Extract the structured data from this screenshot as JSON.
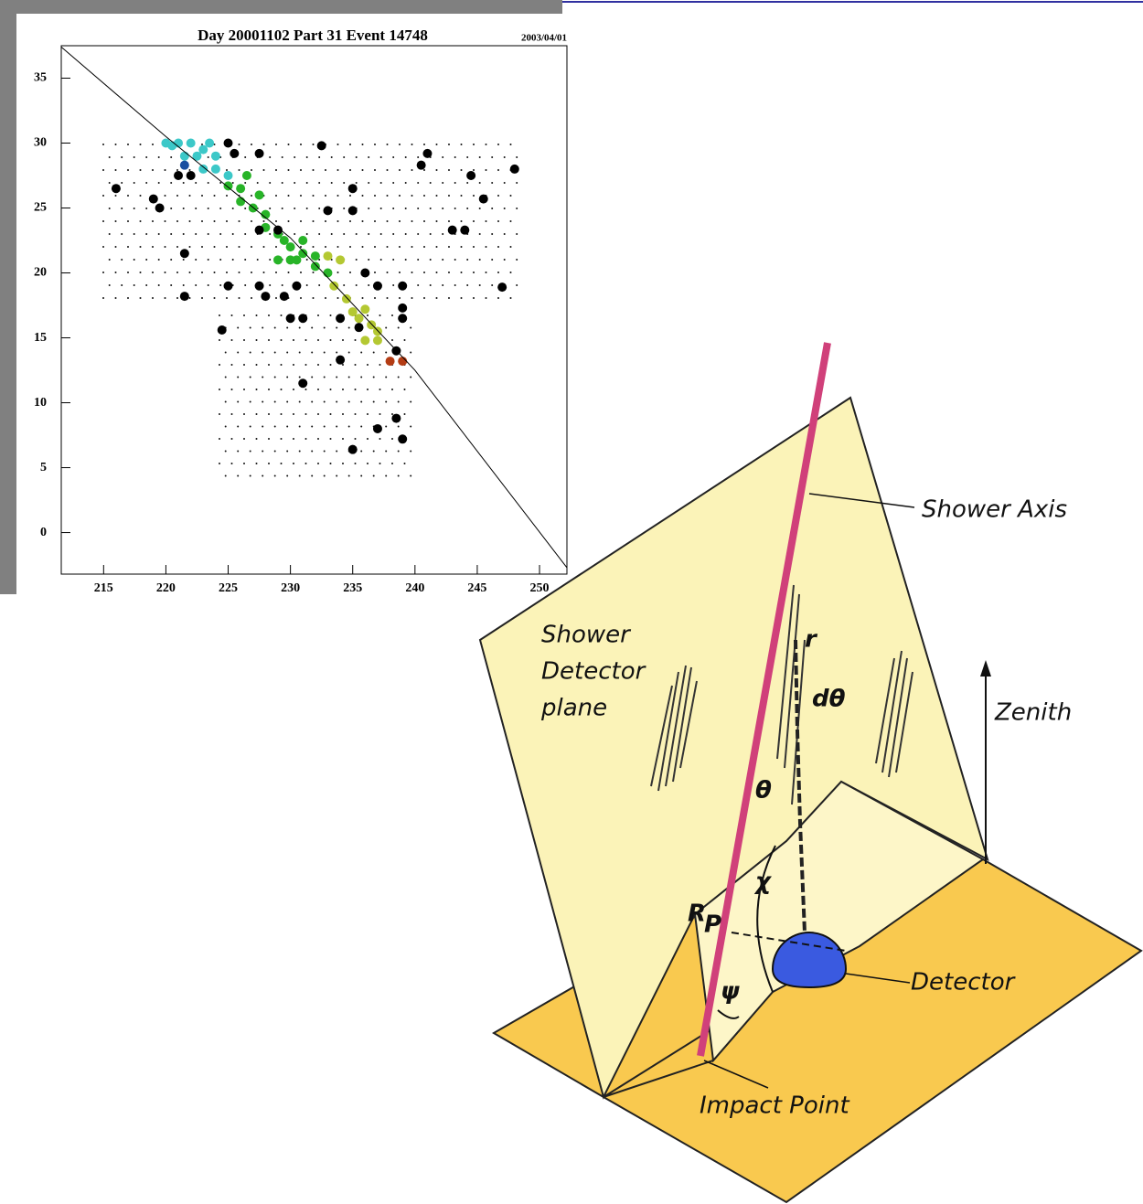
{
  "chart_data": {
    "type": "scatter",
    "title": "Day 20001102 Part 31 Event 14748",
    "date": "2003/04/01",
    "xlim": [
      211.6,
      252.2
    ],
    "ylim": [
      -3.2,
      37.5
    ],
    "xticks": [
      215,
      220,
      225,
      230,
      235,
      240,
      245,
      250
    ],
    "yticks": [
      0,
      5,
      10,
      15,
      20,
      25,
      30,
      35
    ],
    "series": [
      {
        "color": "#3cc8c8",
        "x": [
          220,
          221,
          222,
          223,
          221.5,
          222.5,
          224,
          223,
          224,
          225,
          220.5,
          223.5
        ],
        "values": [
          30,
          30,
          30,
          29.5,
          29,
          29,
          29,
          28,
          28,
          27.5,
          29.8,
          30
        ]
      },
      {
        "color": "#1a4fa0",
        "x": [
          221.5
        ],
        "values": [
          28.3
        ]
      },
      {
        "color": "#28b428",
        "x": [
          225,
          226,
          226,
          227,
          228,
          228,
          229,
          229.5,
          230,
          230.5,
          231,
          232,
          232,
          233,
          230,
          231,
          229,
          226.5,
          227.5
        ],
        "values": [
          26.7,
          26.5,
          25.5,
          25,
          24.5,
          23.5,
          23,
          22.5,
          22,
          21,
          21.5,
          20.5,
          21.3,
          20,
          21,
          22.5,
          21,
          27.5,
          26
        ]
      },
      {
        "color": "#b4c832",
        "x": [
          233,
          234,
          233.5,
          234.5,
          235,
          235.5,
          236,
          236.5,
          237,
          236,
          237
        ],
        "values": [
          21.3,
          21,
          19,
          18,
          17,
          16.5,
          17.2,
          16,
          15.5,
          14.8,
          14.8
        ]
      },
      {
        "color": "#b43c14",
        "x": [
          238,
          239
        ],
        "values": [
          13.2,
          13.2
        ]
      },
      {
        "color": "#000000",
        "x": [
          216,
          219,
          219.5,
          222,
          221,
          225,
          225.5,
          227.5,
          232.5,
          235,
          235,
          233,
          229,
          227.5,
          221.5,
          221.5,
          225,
          227.5,
          228,
          230.5,
          229.5,
          230,
          231,
          234,
          235.5,
          224.5,
          234,
          236,
          237,
          239,
          239,
          239,
          238.5,
          231,
          237,
          238.5,
          239,
          235,
          240.5,
          241,
          244.5,
          245.5,
          243,
          244,
          247,
          248
        ],
        "values": [
          26.5,
          25.7,
          25,
          27.5,
          27.5,
          30,
          29.2,
          29.2,
          29.8,
          26.5,
          24.8,
          24.8,
          23.3,
          23.3,
          21.5,
          18.2,
          19,
          19,
          18.2,
          19,
          18.2,
          16.5,
          16.5,
          16.5,
          15.8,
          15.6,
          13.3,
          20,
          19,
          19,
          17.3,
          16.5,
          14,
          11.5,
          8,
          8.8,
          7.2,
          6.4,
          28.3,
          29.2,
          27.5,
          25.7,
          23.3,
          23.3,
          18.9,
          28
        ]
      }
    ],
    "fit": {
      "x": [
        211.6,
        220,
        230,
        240,
        252.2
      ],
      "values": [
        37.4,
        30.5,
        22.7,
        12.5,
        -2.7
      ]
    }
  },
  "diagram": {
    "labels": {
      "shower_axis": "Shower Axis",
      "plane_1": "Shower",
      "plane_2": "Detector",
      "plane_3": "plane",
      "r": "r",
      "dtheta": "dθ",
      "theta": "θ",
      "chi": "χ",
      "rp": "R",
      "rp_sub": "P",
      "psi": "ψ",
      "zenith": "Zenith",
      "detector": "Detector",
      "impact": "Impact Point"
    }
  }
}
